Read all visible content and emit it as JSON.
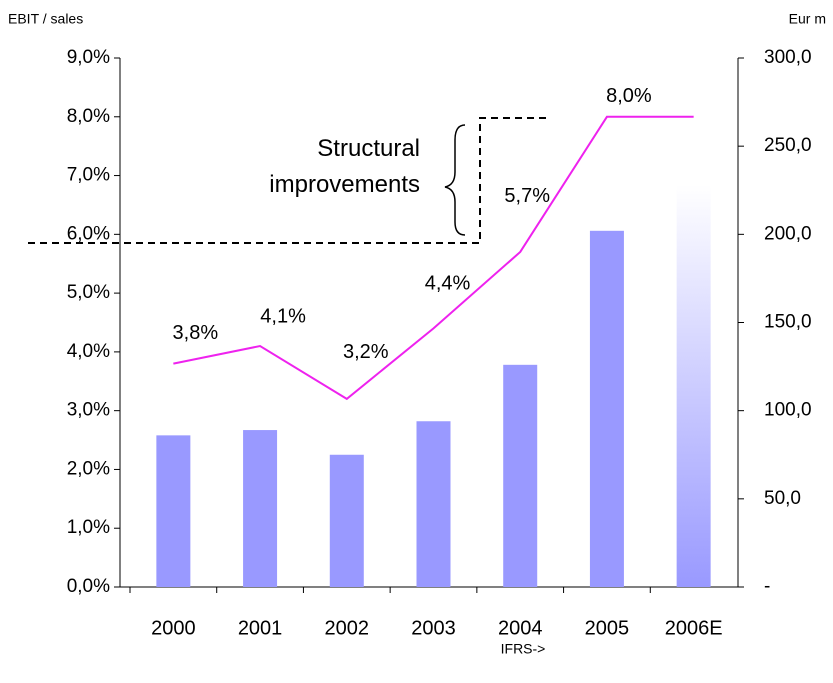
{
  "chart_data": {
    "type": "bar-line",
    "ylabel": "EBIT / sales",
    "y2label": "Eur m",
    "xlabel": "IFRS->",
    "annotation": "Structural improvements",
    "categories": [
      "2000",
      "2001",
      "2002",
      "2003",
      "2004",
      "2005",
      "2006E"
    ],
    "series": [
      {
        "type": "bar",
        "axis": "y2",
        "color": "#9999ff",
        "values": [
          86,
          89,
          75,
          94,
          126,
          202,
          228
        ]
      },
      {
        "type": "line",
        "axis": "y",
        "color": "#ee22ee",
        "values": [
          3.8,
          4.1,
          3.2,
          4.4,
          5.7,
          8.0,
          8.0
        ],
        "value_labels": [
          "3,8%",
          "4,1%",
          "3,2%",
          "4,4%",
          "5,7%",
          "8,0%",
          null
        ]
      }
    ],
    "ylim": [
      0,
      9
    ],
    "yticks": [
      {
        "value": 0,
        "label": "0,0%"
      },
      {
        "value": 1,
        "label": "1,0%"
      },
      {
        "value": 2,
        "label": "2,0%"
      },
      {
        "value": 3,
        "label": "3,0%"
      },
      {
        "value": 4,
        "label": "4,0%"
      },
      {
        "value": 5,
        "label": "5,0%"
      },
      {
        "value": 6,
        "label": "6,0%"
      },
      {
        "value": 7,
        "label": "7,0%"
      },
      {
        "value": 8,
        "label": "8,0%"
      },
      {
        "value": 9,
        "label": "9,0%"
      }
    ],
    "y2lim": [
      0,
      300
    ],
    "y2ticks": [
      {
        "value": 0,
        "label": "-"
      },
      {
        "value": 50,
        "label": "50,0"
      },
      {
        "value": 100,
        "label": "100,0"
      },
      {
        "value": 150,
        "label": "150,0"
      },
      {
        "value": 200,
        "label": "200,0"
      },
      {
        "value": 250,
        "label": "250,0"
      },
      {
        "value": 300,
        "label": "300,0"
      }
    ]
  }
}
